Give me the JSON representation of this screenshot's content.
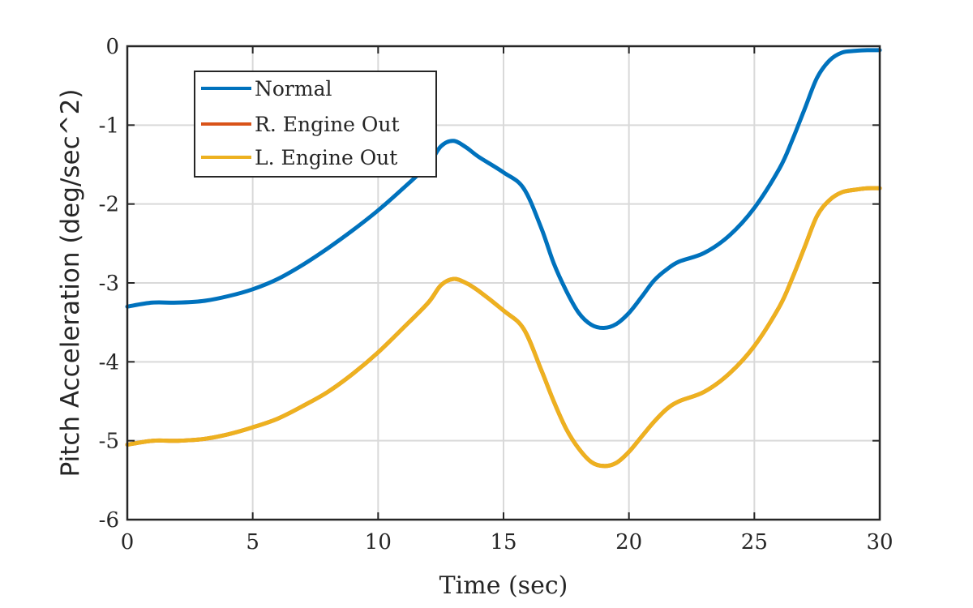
{
  "chart_data": {
    "type": "line",
    "title": "",
    "xlabel": "Time (sec)",
    "ylabel": "Pitch Acceleration (deg/sec^2)",
    "xlim": [
      0,
      30
    ],
    "ylim": [
      -6,
      0
    ],
    "xticks": [
      0,
      5,
      10,
      15,
      20,
      25,
      30
    ],
    "yticks": [
      0,
      -1,
      -2,
      -3,
      -4,
      -5,
      -6
    ],
    "grid": true,
    "legend_position": "top-left",
    "series": [
      {
        "name": "Normal",
        "color": "#0072BD",
        "x": [
          0,
          1,
          2,
          3,
          4,
          5,
          6,
          7,
          8,
          9,
          10,
          11,
          12,
          12.5,
          13,
          13.5,
          14,
          15,
          15.8,
          16.5,
          17,
          17.5,
          18,
          18.5,
          19,
          19.5,
          20,
          20.5,
          21,
          21.5,
          22,
          23,
          24,
          25,
          26,
          26.5,
          27,
          27.5,
          28,
          28.5,
          29,
          29.5,
          30
        ],
        "y": [
          -3.3,
          -3.25,
          -3.25,
          -3.23,
          -3.17,
          -3.08,
          -2.95,
          -2.77,
          -2.56,
          -2.33,
          -2.08,
          -1.8,
          -1.5,
          -1.27,
          -1.2,
          -1.28,
          -1.4,
          -1.6,
          -1.8,
          -2.3,
          -2.75,
          -3.1,
          -3.38,
          -3.53,
          -3.57,
          -3.52,
          -3.38,
          -3.18,
          -2.97,
          -2.83,
          -2.73,
          -2.62,
          -2.4,
          -2.05,
          -1.55,
          -1.2,
          -0.8,
          -0.4,
          -0.18,
          -0.08,
          -0.06,
          -0.05,
          -0.05
        ]
      },
      {
        "name": "R. Engine Out",
        "color": "#D95319",
        "x": [
          0,
          1,
          2,
          3,
          4,
          5,
          6,
          7,
          8,
          9,
          10,
          11,
          12,
          12.5,
          13,
          13.5,
          14,
          15,
          15.8,
          16.5,
          17,
          17.5,
          18,
          18.5,
          19,
          19.5,
          20,
          20.5,
          21,
          21.5,
          22,
          23,
          24,
          25,
          26,
          26.5,
          27,
          27.5,
          28,
          28.5,
          29,
          29.5,
          30
        ],
        "y": [
          -5.05,
          -5.0,
          -5.0,
          -4.98,
          -4.92,
          -4.83,
          -4.72,
          -4.56,
          -4.38,
          -4.15,
          -3.88,
          -3.57,
          -3.25,
          -3.03,
          -2.95,
          -3.0,
          -3.1,
          -3.35,
          -3.58,
          -4.1,
          -4.5,
          -4.85,
          -5.1,
          -5.27,
          -5.32,
          -5.28,
          -5.14,
          -4.95,
          -4.76,
          -4.6,
          -4.5,
          -4.38,
          -4.15,
          -3.8,
          -3.3,
          -2.95,
          -2.55,
          -2.15,
          -1.95,
          -1.85,
          -1.82,
          -1.8,
          -1.8
        ]
      },
      {
        "name": "L. Engine Out",
        "color": "#EDB120",
        "x": [
          0,
          1,
          2,
          3,
          4,
          5,
          6,
          7,
          8,
          9,
          10,
          11,
          12,
          12.5,
          13,
          13.5,
          14,
          15,
          15.8,
          16.5,
          17,
          17.5,
          18,
          18.5,
          19,
          19.5,
          20,
          20.5,
          21,
          21.5,
          22,
          23,
          24,
          25,
          26,
          26.5,
          27,
          27.5,
          28,
          28.5,
          29,
          29.5,
          30
        ],
        "y": [
          -5.05,
          -5.0,
          -5.0,
          -4.98,
          -4.92,
          -4.83,
          -4.72,
          -4.56,
          -4.38,
          -4.15,
          -3.88,
          -3.57,
          -3.25,
          -3.03,
          -2.95,
          -3.0,
          -3.1,
          -3.35,
          -3.58,
          -4.1,
          -4.5,
          -4.85,
          -5.1,
          -5.27,
          -5.32,
          -5.28,
          -5.14,
          -4.95,
          -4.76,
          -4.6,
          -4.5,
          -4.38,
          -4.15,
          -3.8,
          -3.3,
          -2.95,
          -2.55,
          -2.15,
          -1.95,
          -1.85,
          -1.82,
          -1.8,
          -1.8
        ]
      }
    ]
  }
}
